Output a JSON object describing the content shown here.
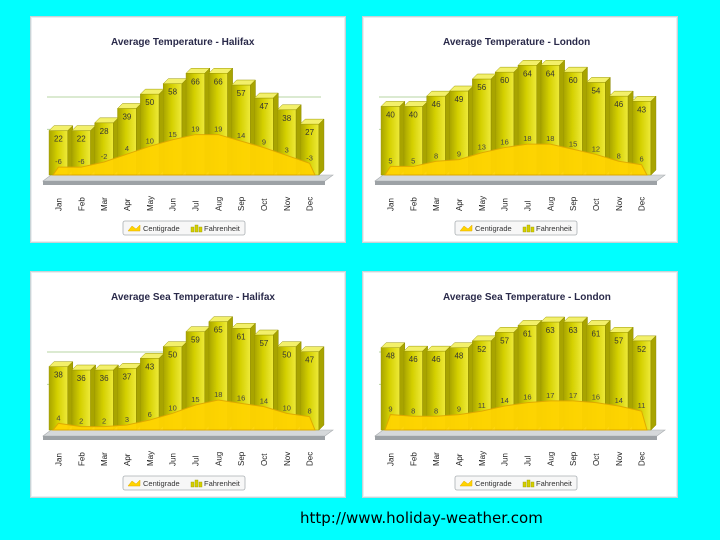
{
  "page": {
    "url": "http://www.holiday-weather.com"
  },
  "legend": {
    "fahrenheit": "Fahrenheit",
    "centigrade": "Centigrade"
  },
  "colors": {
    "background": "#00ffff",
    "bar": "#d4d000",
    "bar_top": "#f3f06a",
    "bar_side": "#a8a400",
    "area": "#ffd400",
    "area_edge": "#e0a800"
  },
  "chart_data": [
    {
      "type": "bar",
      "title": "Average Temperature - Halifax",
      "categories": [
        "Jan",
        "Feb",
        "Mar",
        "Apr",
        "May",
        "Jun",
        "Jul",
        "Aug",
        "Sep",
        "Oct",
        "Nov",
        "Dec"
      ],
      "series": [
        {
          "name": "Fahrenheit",
          "chart": "bar",
          "values": [
            22,
            22,
            28,
            39,
            50,
            58,
            66,
            66,
            57,
            47,
            38,
            27
          ],
          "labels": [
            "22",
            "22",
            "28",
            "39",
            "50",
            "58",
            "66",
            "66",
            "57",
            "47",
            "38",
            "27"
          ]
        },
        {
          "name": "Centigrade",
          "chart": "area",
          "values": [
            -6,
            -6,
            -2,
            4,
            10,
            15,
            19,
            19,
            14,
            9,
            3,
            -3
          ],
          "labels": [
            "-6",
            "-6",
            "-2",
            "4",
            "10",
            "15",
            "19",
            "19",
            "14",
            "9",
            "3",
            "-3"
          ]
        }
      ],
      "ylim": [
        -12,
        80
      ]
    },
    {
      "type": "bar",
      "title": "Average Temperature - London",
      "categories": [
        "Jan",
        "Feb",
        "Mar",
        "Apr",
        "May",
        "Jun",
        "Jul",
        "Aug",
        "Sep",
        "Oct",
        "Nov",
        "Dec"
      ],
      "series": [
        {
          "name": "Fahrenheit",
          "chart": "bar",
          "values": [
            40,
            40,
            46,
            49,
            56,
            60,
            64,
            64,
            60,
            54,
            46,
            43
          ],
          "labels": [
            "40",
            "40",
            "46",
            "49",
            "56",
            "60",
            "64",
            "64",
            "60",
            "54",
            "46",
            "43"
          ]
        },
        {
          "name": "Centigrade",
          "chart": "area",
          "values": [
            5,
            5,
            8,
            9,
            13,
            16,
            18,
            18,
            15,
            12,
            8,
            6
          ],
          "labels": [
            "5",
            "5",
            "8",
            "9",
            "13",
            "16",
            "18",
            "18",
            "15",
            "12",
            "8",
            "6"
          ]
        }
      ],
      "ylim": [
        0,
        70
      ]
    },
    {
      "type": "bar",
      "title": "Average Sea Temperature - Halifax",
      "categories": [
        "Jan",
        "Feb",
        "Mar",
        "Apr",
        "May",
        "Jun",
        "Jul",
        "Aug",
        "Sep",
        "Oct",
        "Nov",
        "Dec"
      ],
      "series": [
        {
          "name": "Fahrenheit",
          "chart": "bar",
          "values": [
            38,
            36,
            36,
            37,
            43,
            50,
            59,
            65,
            61,
            57,
            50,
            47
          ],
          "labels": [
            "38",
            "36",
            "36",
            "37",
            "43",
            "50",
            "59",
            "65",
            "61",
            "57",
            "50",
            "47"
          ]
        },
        {
          "name": "Centigrade",
          "chart": "area",
          "values": [
            4,
            2,
            2,
            3,
            6,
            10,
            15,
            18,
            16,
            14,
            10,
            8
          ],
          "labels": [
            "4",
            "2",
            "2",
            "3",
            "6",
            "10",
            "15",
            "18",
            "16",
            "14",
            "10",
            "8"
          ]
        }
      ],
      "ylim": [
        0,
        72
      ]
    },
    {
      "type": "bar",
      "title": "Average Sea Temperature - London",
      "categories": [
        "Jan",
        "Feb",
        "Mar",
        "Apr",
        "May",
        "Jun",
        "Jul",
        "Aug",
        "Sep",
        "Oct",
        "Nov",
        "Dec"
      ],
      "series": [
        {
          "name": "Fahrenheit",
          "chart": "bar",
          "values": [
            48,
            46,
            46,
            48,
            52,
            57,
            61,
            63,
            63,
            61,
            57,
            52
          ],
          "labels": [
            "48",
            "46",
            "46",
            "48",
            "52",
            "57",
            "61",
            "63",
            "63",
            "61",
            "57",
            "52"
          ]
        },
        {
          "name": "Centigrade",
          "chart": "area",
          "values": [
            9,
            8,
            8,
            9,
            11,
            14,
            16,
            17,
            17,
            16,
            14,
            11
          ],
          "labels": [
            "9",
            "8",
            "8",
            "9",
            "11",
            "14",
            "16",
            "17",
            "17",
            "16",
            "14",
            "11"
          ]
        }
      ],
      "ylim": [
        0,
        70
      ]
    }
  ]
}
